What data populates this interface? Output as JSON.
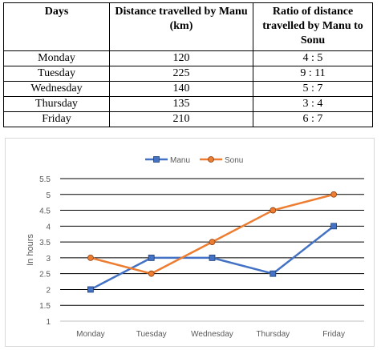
{
  "table": {
    "headers": [
      "Days",
      "Distance travelled by Manu (km)",
      "Ratio of distance travelled by Manu to Sonu"
    ],
    "rows": [
      [
        "Monday",
        "120",
        "4 : 5"
      ],
      [
        "Tuesday",
        "225",
        "9 : 11"
      ],
      [
        "Wednesday",
        "140",
        "5 : 7"
      ],
      [
        "Thursday",
        "135",
        "3 : 4"
      ],
      [
        "Friday",
        "210",
        "6 : 7"
      ]
    ]
  },
  "chart_data": {
    "type": "line",
    "categories": [
      "Monday",
      "Tuesday",
      "Wednesday",
      "Thursday",
      "Friday"
    ],
    "series": [
      {
        "name": "Manu",
        "values": [
          2,
          3,
          3,
          2.5,
          4
        ],
        "color": "#4472C4",
        "marker": "square"
      },
      {
        "name": "Sonu",
        "values": [
          3,
          2.5,
          3.5,
          4.5,
          5
        ],
        "color": "#ED7D31",
        "marker": "circle"
      }
    ],
    "ylabel": "In hours",
    "ylim": [
      1,
      5.5
    ],
    "ytick_step": 0.5,
    "yticks": [
      "1",
      "1.5",
      "2",
      "2.5",
      "3",
      "3.5",
      "4",
      "4.5",
      "5",
      "5.5"
    ],
    "grid": true,
    "legend": "top-center"
  }
}
